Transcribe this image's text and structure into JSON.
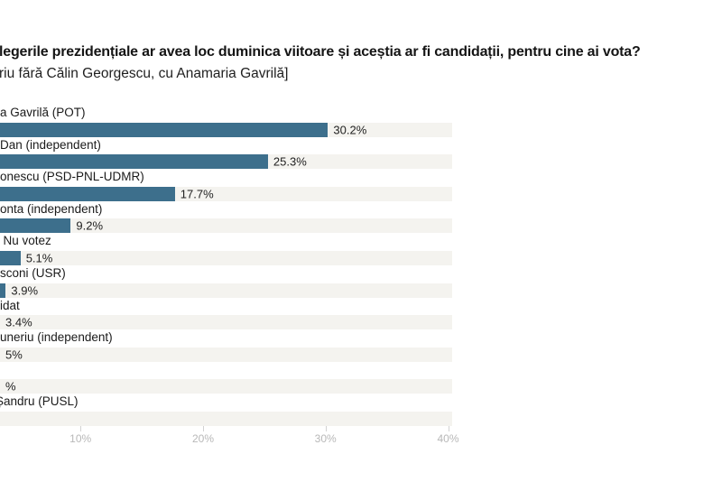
{
  "header": {
    "title": "legerile prezidențiale ar avea loc duminica viitoare și aceștia ar fi candidații, pentru cine ai vota?",
    "subtitle": "riu fără Călin Georgescu, cu Anamaria Gavrilă]"
  },
  "chart_data": {
    "type": "bar",
    "orientation": "horizontal",
    "note": "Image is cropped at the left edge: category labels and some value labels are visible only as fragments; pct values for the last three rows are estimates read from the bar scale (bars/labels mostly cut off).",
    "rows": [
      {
        "label": "a Gavrilă (POT)",
        "value_text": "30.2%",
        "pct": 30.2,
        "label_dx": 0
      },
      {
        "label": "Dan (independent)",
        "value_text": "25.3%",
        "pct": 25.3,
        "label_dx": 0
      },
      {
        "label": "onescu (PSD-PNL-UDMR)",
        "value_text": "17.7%",
        "pct": 17.7,
        "label_dx": 0
      },
      {
        "label": "onta (independent)",
        "value_text": "9.2%",
        "pct": 9.2,
        "label_dx": 0
      },
      {
        "label": "/ Nu votez",
        "value_text": "5.1%",
        "pct": 5.1,
        "label_dx": -4
      },
      {
        "label": "sconi (USR)",
        "value_text": "3.9%",
        "pct": 3.9,
        "label_dx": 0
      },
      {
        "label": "idat",
        "value_text": "3.4%",
        "pct": 3.4,
        "label_dx": 0
      },
      {
        "label": "uneriu (independent)",
        "value_text": "5%",
        "pct": 2.5,
        "label_dx": 0
      },
      {
        "label": "",
        "value_text": "%",
        "pct": 1.2,
        "label_dx": 0
      },
      {
        "label": "Șandru (PUSL)",
        "value_text": "",
        "pct": 0.5,
        "label_dx": -5
      }
    ],
    "x_axis": {
      "ticks": [
        "10%",
        "20%",
        "30%",
        "40%"
      ],
      "tick_values": [
        10,
        20,
        30,
        40
      ],
      "visible_range_pct": [
        3.4,
        40.3
      ],
      "grid": "off",
      "legend": "none"
    },
    "colors": {
      "bar": "#3d6f8c",
      "track": "#f4f3ef",
      "axis_label": "#b8b8b8"
    }
  }
}
